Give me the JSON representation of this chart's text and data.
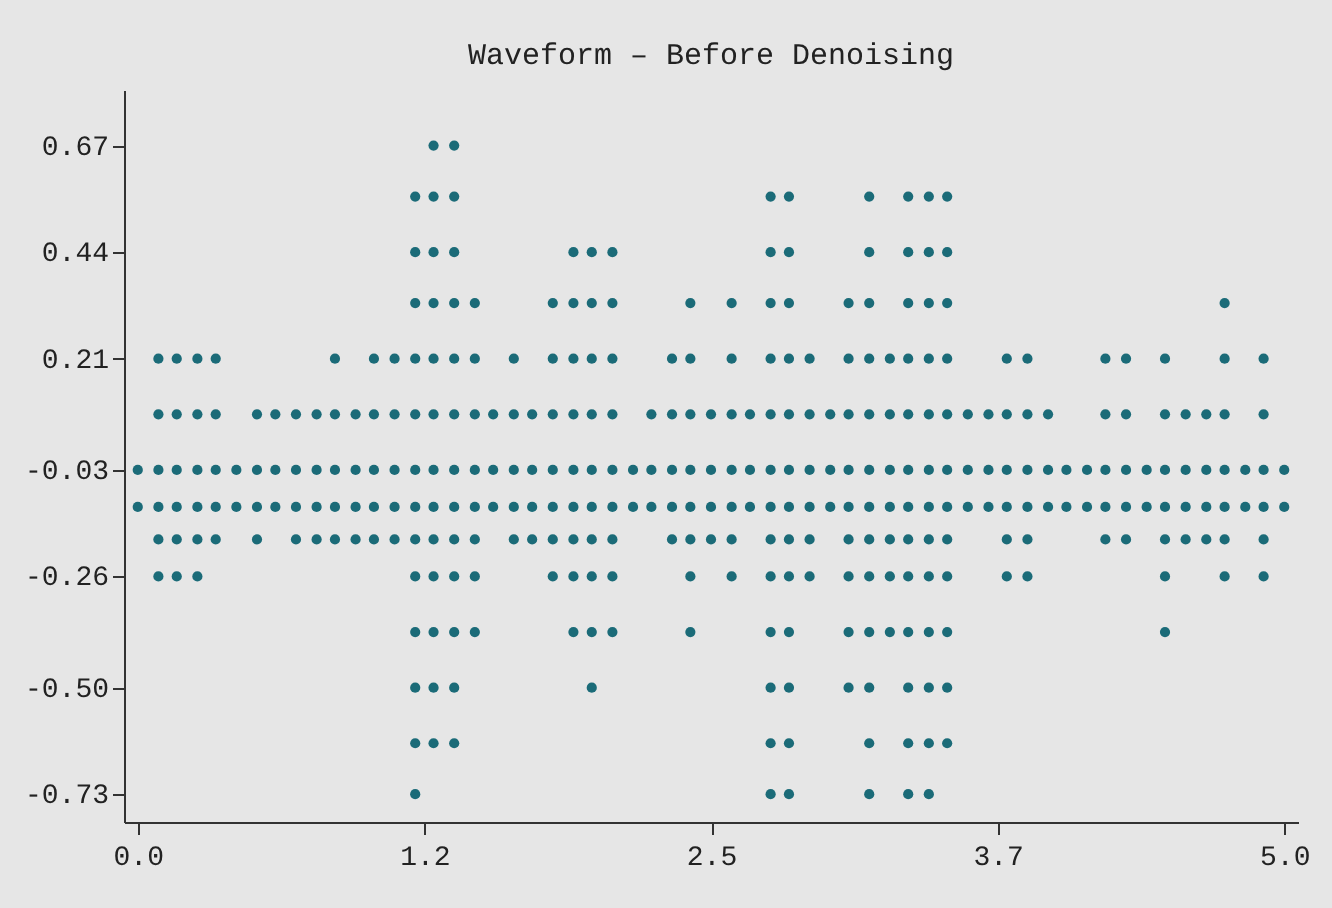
{
  "chart_data": {
    "type": "scatter",
    "title": "Waveform – Before Denoising",
    "marker": "circle",
    "xlim": [
      -0.06,
      5.06
    ],
    "ylim": [
      -0.79,
      0.79
    ],
    "xticks": [
      {
        "value": 0,
        "label": "0.0"
      },
      {
        "value": 1.25,
        "label": "1.2"
      },
      2.5,
      {
        "value": 3.75,
        "label": "3.7"
      },
      {
        "value": 5,
        "label": "5.0"
      }
    ],
    "yticks": [
      0.67,
      0.44,
      0.21,
      -0.03,
      -0.26,
      {
        "value": -0.5,
        "label": "-0.50"
      },
      -0.73
    ],
    "series": [
      {
        "color": "#1b6b78",
        "x": [
          1.29,
          1.38
        ],
        "values": [
          0.67,
          0.67
        ]
      },
      {
        "color": "#1b6b78",
        "x": [
          1.21,
          1.29,
          1.38,
          2.76,
          2.84,
          3.19,
          3.36,
          3.45,
          3.53
        ],
        "values": [
          0.56,
          0.56,
          0.56,
          0.56,
          0.56,
          0.56,
          0.56,
          0.56,
          0.56
        ]
      },
      {
        "color": "#1b6b78",
        "x": [
          1.21,
          1.29,
          1.38,
          1.9,
          1.98,
          2.07,
          2.76,
          2.84,
          3.19,
          3.36,
          3.45,
          3.53
        ],
        "values": [
          0.44,
          0.44,
          0.44,
          0.44,
          0.44,
          0.44,
          0.44,
          0.44,
          0.44,
          0.44,
          0.44,
          0.44
        ]
      },
      {
        "color": "#1b6b78",
        "x": [
          1.21,
          1.29,
          1.38,
          1.47,
          1.81,
          1.9,
          1.98,
          2.07,
          2.41,
          2.59,
          2.76,
          2.84,
          3.1,
          3.19,
          3.36,
          3.45,
          3.53,
          4.74
        ],
        "values": [
          0.33,
          0.33,
          0.33,
          0.33,
          0.33,
          0.33,
          0.33,
          0.33,
          0.33,
          0.33,
          0.33,
          0.33,
          0.33,
          0.33,
          0.33,
          0.33,
          0.33,
          0.33
        ]
      },
      {
        "color": "#1b6b78",
        "x": [
          0.09,
          0.17,
          0.26,
          0.34,
          0.86,
          1.03,
          1.12,
          1.21,
          1.29,
          1.38,
          1.47,
          1.64,
          1.81,
          1.9,
          1.98,
          2.07,
          2.33,
          2.41,
          2.59,
          2.76,
          2.84,
          2.93,
          3.1,
          3.19,
          3.28,
          3.36,
          3.45,
          3.53,
          3.79,
          3.88,
          4.22,
          4.31,
          4.48,
          4.74,
          4.91
        ],
        "values": [
          0.21,
          0.21,
          0.21,
          0.21,
          0.21,
          0.21,
          0.21,
          0.21,
          0.21,
          0.21,
          0.21,
          0.21,
          0.21,
          0.21,
          0.21,
          0.21,
          0.21,
          0.21,
          0.21,
          0.21,
          0.21,
          0.21,
          0.21,
          0.21,
          0.21,
          0.21,
          0.21,
          0.21,
          0.21,
          0.21,
          0.21,
          0.21,
          0.21,
          0.21,
          0.21
        ]
      },
      {
        "color": "#1b6b78",
        "x": [
          0.09,
          0.17,
          0.26,
          0.34,
          0.52,
          0.6,
          0.69,
          0.78,
          0.86,
          0.95,
          1.03,
          1.12,
          1.21,
          1.29,
          1.38,
          1.47,
          1.55,
          1.64,
          1.72,
          1.81,
          1.9,
          1.98,
          2.07,
          2.24,
          2.33,
          2.41,
          2.5,
          2.59,
          2.67,
          2.76,
          2.84,
          2.93,
          3.02,
          3.1,
          3.19,
          3.28,
          3.36,
          3.45,
          3.53,
          3.62,
          3.71,
          3.79,
          3.88,
          3.97,
          4.22,
          4.31,
          4.48,
          4.57,
          4.66,
          4.74,
          4.91
        ],
        "values": [
          0.09,
          0.09,
          0.09,
          0.09,
          0.09,
          0.09,
          0.09,
          0.09,
          0.09,
          0.09,
          0.09,
          0.09,
          0.09,
          0.09,
          0.09,
          0.09,
          0.09,
          0.09,
          0.09,
          0.09,
          0.09,
          0.09,
          0.09,
          0.09,
          0.09,
          0.09,
          0.09,
          0.09,
          0.09,
          0.09,
          0.09,
          0.09,
          0.09,
          0.09,
          0.09,
          0.09,
          0.09,
          0.09,
          0.09,
          0.09,
          0.09,
          0.09,
          0.09,
          0.09,
          0.09,
          0.09,
          0.09,
          0.09,
          0.09,
          0.09,
          0.09
        ]
      },
      {
        "color": "#1b6b78",
        "x": [
          0.0,
          0.09,
          0.17,
          0.26,
          0.34,
          0.43,
          0.52,
          0.6,
          0.69,
          0.78,
          0.86,
          0.95,
          1.03,
          1.12,
          1.21,
          1.29,
          1.38,
          1.47,
          1.55,
          1.64,
          1.72,
          1.81,
          1.9,
          1.98,
          2.07,
          2.16,
          2.24,
          2.33,
          2.41,
          2.5,
          2.59,
          2.67,
          2.76,
          2.84,
          2.93,
          3.02,
          3.1,
          3.19,
          3.28,
          3.36,
          3.45,
          3.53,
          3.62,
          3.71,
          3.79,
          3.88,
          3.97,
          4.05,
          4.14,
          4.22,
          4.31,
          4.4,
          4.48,
          4.57,
          4.66,
          4.74,
          4.83,
          4.91,
          5.0
        ],
        "values": [
          -0.03,
          -0.03,
          -0.03,
          -0.03,
          -0.03,
          -0.03,
          -0.03,
          -0.03,
          -0.03,
          -0.03,
          -0.03,
          -0.03,
          -0.03,
          -0.03,
          -0.03,
          -0.03,
          -0.03,
          -0.03,
          -0.03,
          -0.03,
          -0.03,
          -0.03,
          -0.03,
          -0.03,
          -0.03,
          -0.03,
          -0.03,
          -0.03,
          -0.03,
          -0.03,
          -0.03,
          -0.03,
          -0.03,
          -0.03,
          -0.03,
          -0.03,
          -0.03,
          -0.03,
          -0.03,
          -0.03,
          -0.03,
          -0.03,
          -0.03,
          -0.03,
          -0.03,
          -0.03,
          -0.03,
          -0.03,
          -0.03,
          -0.03,
          -0.03,
          -0.03,
          -0.03,
          -0.03,
          -0.03,
          -0.03,
          -0.03,
          -0.03,
          -0.03
        ]
      },
      {
        "color": "#1b6b78",
        "x": [
          0.0,
          0.09,
          0.17,
          0.26,
          0.34,
          0.43,
          0.52,
          0.6,
          0.69,
          0.78,
          0.86,
          0.95,
          1.03,
          1.12,
          1.21,
          1.29,
          1.38,
          1.47,
          1.55,
          1.64,
          1.72,
          1.81,
          1.9,
          1.98,
          2.07,
          2.16,
          2.24,
          2.33,
          2.41,
          2.5,
          2.59,
          2.67,
          2.76,
          2.84,
          2.93,
          3.02,
          3.1,
          3.19,
          3.28,
          3.36,
          3.45,
          3.53,
          3.62,
          3.71,
          3.79,
          3.88,
          3.97,
          4.05,
          4.14,
          4.22,
          4.31,
          4.4,
          4.48,
          4.57,
          4.66,
          4.74,
          4.83,
          4.91,
          5.0
        ],
        "values": [
          -0.11,
          -0.11,
          -0.11,
          -0.11,
          -0.11,
          -0.11,
          -0.11,
          -0.11,
          -0.11,
          -0.11,
          -0.11,
          -0.11,
          -0.11,
          -0.11,
          -0.11,
          -0.11,
          -0.11,
          -0.11,
          -0.11,
          -0.11,
          -0.11,
          -0.11,
          -0.11,
          -0.11,
          -0.11,
          -0.11,
          -0.11,
          -0.11,
          -0.11,
          -0.11,
          -0.11,
          -0.11,
          -0.11,
          -0.11,
          -0.11,
          -0.11,
          -0.11,
          -0.11,
          -0.11,
          -0.11,
          -0.11,
          -0.11,
          -0.11,
          -0.11,
          -0.11,
          -0.11,
          -0.11,
          -0.11,
          -0.11,
          -0.11,
          -0.11,
          -0.11,
          -0.11,
          -0.11,
          -0.11,
          -0.11,
          -0.11,
          -0.11,
          -0.11
        ]
      },
      {
        "color": "#1b6b78",
        "x": [
          0.09,
          0.17,
          0.26,
          0.34,
          0.52,
          0.69,
          0.78,
          0.86,
          0.95,
          1.03,
          1.12,
          1.21,
          1.29,
          1.38,
          1.47,
          1.64,
          1.72,
          1.81,
          1.9,
          1.98,
          2.07,
          2.33,
          2.41,
          2.5,
          2.59,
          2.76,
          2.84,
          2.93,
          3.1,
          3.19,
          3.28,
          3.36,
          3.45,
          3.53,
          3.79,
          3.88,
          4.22,
          4.31,
          4.48,
          4.57,
          4.66,
          4.74,
          4.91
        ],
        "values": [
          -0.18,
          -0.18,
          -0.18,
          -0.18,
          -0.18,
          -0.18,
          -0.18,
          -0.18,
          -0.18,
          -0.18,
          -0.18,
          -0.18,
          -0.18,
          -0.18,
          -0.18,
          -0.18,
          -0.18,
          -0.18,
          -0.18,
          -0.18,
          -0.18,
          -0.18,
          -0.18,
          -0.18,
          -0.18,
          -0.18,
          -0.18,
          -0.18,
          -0.18,
          -0.18,
          -0.18,
          -0.18,
          -0.18,
          -0.18,
          -0.18,
          -0.18,
          -0.18,
          -0.18,
          -0.18,
          -0.18,
          -0.18,
          -0.18,
          -0.18
        ]
      },
      {
        "color": "#1b6b78",
        "x": [
          0.09,
          0.17,
          0.26,
          1.21,
          1.29,
          1.38,
          1.47,
          1.81,
          1.9,
          1.98,
          2.07,
          2.41,
          2.59,
          2.76,
          2.84,
          2.93,
          3.1,
          3.19,
          3.28,
          3.36,
          3.45,
          3.53,
          3.79,
          3.88,
          4.48,
          4.74,
          4.91
        ],
        "values": [
          -0.26,
          -0.26,
          -0.26,
          -0.26,
          -0.26,
          -0.26,
          -0.26,
          -0.26,
          -0.26,
          -0.26,
          -0.26,
          -0.26,
          -0.26,
          -0.26,
          -0.26,
          -0.26,
          -0.26,
          -0.26,
          -0.26,
          -0.26,
          -0.26,
          -0.26,
          -0.26,
          -0.26,
          -0.26,
          -0.26,
          -0.26
        ]
      },
      {
        "color": "#1b6b78",
        "x": [
          1.21,
          1.29,
          1.38,
          1.47,
          1.9,
          1.98,
          2.07,
          2.41,
          2.76,
          2.84,
          3.1,
          3.19,
          3.28,
          3.36,
          3.45,
          3.53,
          4.48
        ],
        "values": [
          -0.38,
          -0.38,
          -0.38,
          -0.38,
          -0.38,
          -0.38,
          -0.38,
          -0.38,
          -0.38,
          -0.38,
          -0.38,
          -0.38,
          -0.38,
          -0.38,
          -0.38,
          -0.38,
          -0.38
        ]
      },
      {
        "color": "#1b6b78",
        "x": [
          1.21,
          1.29,
          1.38,
          1.98,
          2.76,
          2.84,
          3.1,
          3.19,
          3.36,
          3.45,
          3.53
        ],
        "values": [
          -0.5,
          -0.5,
          -0.5,
          -0.5,
          -0.5,
          -0.5,
          -0.5,
          -0.5,
          -0.5,
          -0.5,
          -0.5
        ]
      },
      {
        "color": "#1b6b78",
        "x": [
          1.21,
          1.29,
          1.38,
          2.76,
          2.84,
          3.19,
          3.36,
          3.45,
          3.53
        ],
        "values": [
          -0.62,
          -0.62,
          -0.62,
          -0.62,
          -0.62,
          -0.62,
          -0.62,
          -0.62,
          -0.62
        ]
      },
      {
        "color": "#1b6b78",
        "x": [
          1.21,
          2.76,
          2.84,
          3.19,
          3.36,
          3.45
        ],
        "values": [
          -0.73,
          -0.73,
          -0.73,
          -0.73,
          -0.73,
          -0.73
        ]
      }
    ]
  }
}
